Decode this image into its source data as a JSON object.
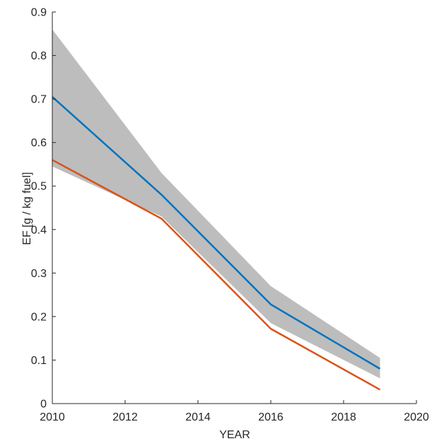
{
  "chart_data": {
    "type": "line",
    "title": "",
    "xlabel": "YEAR",
    "ylabel": "EF [g / kg fuel]",
    "xlim": [
      2010,
      2020
    ],
    "ylim": [
      0,
      0.9
    ],
    "xticks": [
      2010,
      2012,
      2014,
      2016,
      2018,
      2020
    ],
    "yticks": [
      0,
      0.1,
      0.2,
      0.3,
      0.4,
      0.5,
      0.6,
      0.7,
      0.8,
      0.9
    ],
    "xtick_labels": [
      "2010",
      "2012",
      "2014",
      "2016",
      "2018",
      "2020"
    ],
    "ytick_labels": [
      "0",
      "0.1",
      "0.2",
      "0.3",
      "0.4",
      "0.5",
      "0.6",
      "0.7",
      "0.8",
      "0.9"
    ],
    "grid": false,
    "legend": false,
    "band": {
      "x": [
        2010,
        2013,
        2016,
        2019
      ],
      "upper": [
        0.86,
        0.53,
        0.27,
        0.105
      ],
      "lower": [
        0.545,
        0.43,
        0.185,
        0.058
      ],
      "color": "#bdbdbd"
    },
    "series": [
      {
        "x": [
          2010,
          2013,
          2016,
          2019
        ],
        "values": [
          0.705,
          0.48,
          0.228,
          0.08
        ],
        "color": "#0072bd"
      },
      {
        "x": [
          2010,
          2013,
          2016,
          2019
        ],
        "values": [
          0.56,
          0.425,
          0.172,
          0.032
        ],
        "color": "#d95319"
      }
    ]
  }
}
